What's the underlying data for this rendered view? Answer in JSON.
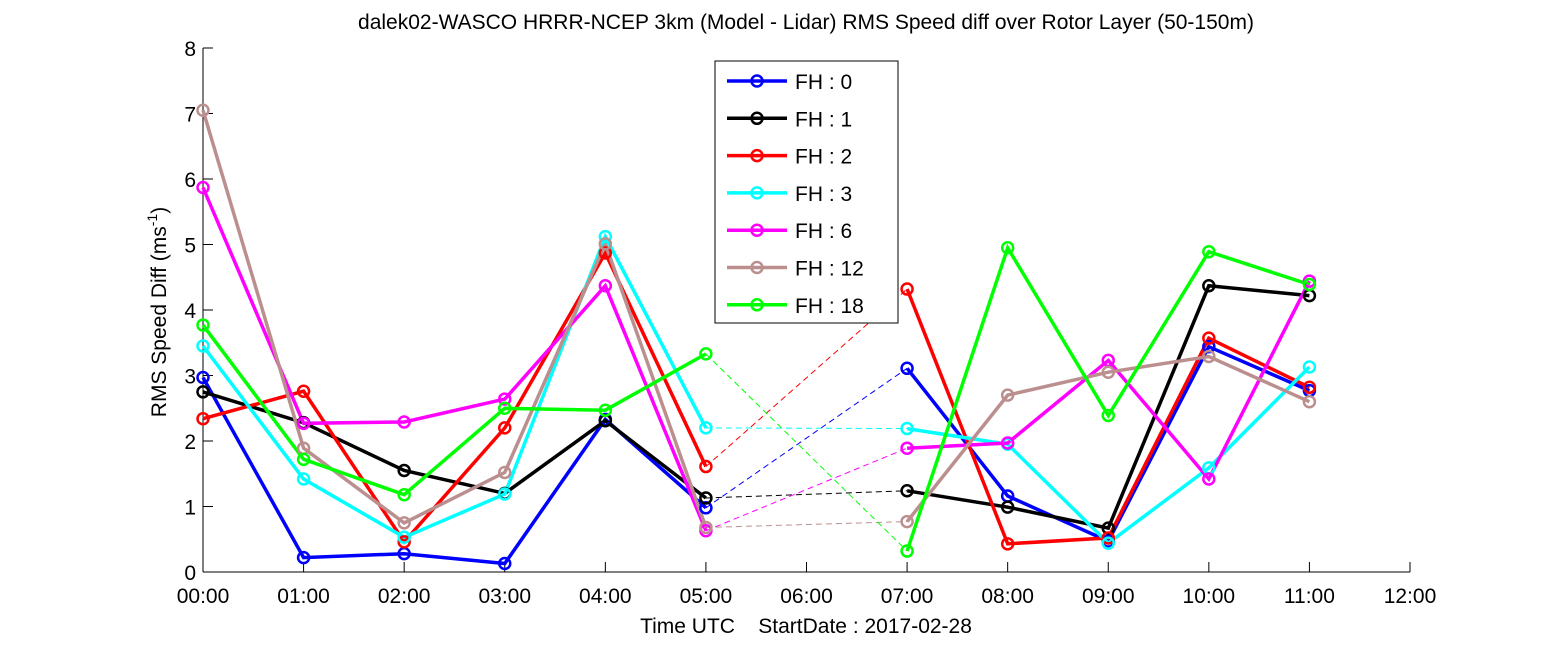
{
  "chart_data": {
    "type": "line",
    "title": "dalek02-WASCO HRRR-NCEP 3km (Model - Lidar) RMS Speed diff over Rotor Layer (50-150m)",
    "xlabel": "Time UTC    StartDate : 2017-02-28",
    "ylabel_main": "RMS Speed Diff (ms",
    "ylabel_sup": "-1",
    "ylabel_tail": ")",
    "x_ticks": [
      {
        "label": "00:00",
        "value": 0
      },
      {
        "label": "01:00",
        "value": 1
      },
      {
        "label": "02:00",
        "value": 2
      },
      {
        "label": "03:00",
        "value": 3
      },
      {
        "label": "04:00",
        "value": 4
      },
      {
        "label": "05:00",
        "value": 5
      },
      {
        "label": "06:00",
        "value": 6
      },
      {
        "label": "07:00",
        "value": 7
      },
      {
        "label": "08:00",
        "value": 8
      },
      {
        "label": "09:00",
        "value": 9
      },
      {
        "label": "10:00",
        "value": 10
      },
      {
        "label": "11:00",
        "value": 11
      },
      {
        "label": "12:00",
        "value": 12
      }
    ],
    "xlim": [
      0,
      12
    ],
    "ylim": [
      0,
      8
    ],
    "y_ticks": [
      0,
      1,
      2,
      3,
      4,
      5,
      6,
      7,
      8
    ],
    "grid": false,
    "legend_position": "top-center",
    "series": [
      {
        "name": "FH : 0",
        "color": "#0000ff",
        "x": [
          0,
          1,
          2,
          3,
          4,
          5,
          7,
          8,
          9,
          10,
          11
        ],
        "y": [
          2.97,
          0.22,
          0.28,
          0.13,
          2.33,
          0.98,
          3.11,
          1.16,
          0.47,
          3.44,
          2.77
        ]
      },
      {
        "name": "FH : 1",
        "color": "#000000",
        "x": [
          0,
          1,
          2,
          3,
          4,
          5,
          7,
          8,
          9,
          10,
          11
        ],
        "y": [
          2.75,
          2.28,
          1.55,
          1.2,
          2.31,
          1.13,
          1.24,
          0.99,
          0.67,
          4.37,
          4.22
        ]
      },
      {
        "name": "FH : 2",
        "color": "#ff0000",
        "x": [
          0,
          1,
          2,
          3,
          4,
          5,
          7,
          8,
          9,
          10,
          11
        ],
        "y": [
          2.34,
          2.76,
          0.46,
          2.2,
          4.87,
          1.61,
          4.32,
          0.43,
          0.52,
          3.57,
          2.82
        ]
      },
      {
        "name": "FH : 3",
        "color": "#00ffff",
        "x": [
          0,
          1,
          2,
          3,
          4,
          5,
          7,
          8,
          9,
          10,
          11
        ],
        "y": [
          3.45,
          1.42,
          0.53,
          1.19,
          5.12,
          2.2,
          2.19,
          1.95,
          0.44,
          1.59,
          3.13
        ]
      },
      {
        "name": "FH : 6",
        "color": "#ff00ff",
        "x": [
          0,
          1,
          2,
          3,
          4,
          5,
          7,
          8,
          9,
          10,
          11
        ],
        "y": [
          5.87,
          2.27,
          2.29,
          2.64,
          4.37,
          0.63,
          1.89,
          1.97,
          3.23,
          1.42,
          4.44
        ]
      },
      {
        "name": "FH : 12",
        "color": "#bc8f8f",
        "x": [
          0,
          1,
          2,
          3,
          4,
          5,
          7,
          8,
          9,
          10,
          11
        ],
        "y": [
          7.05,
          1.89,
          0.75,
          1.52,
          5.01,
          0.68,
          0.77,
          2.7,
          3.05,
          3.29,
          2.6
        ]
      },
      {
        "name": "FH : 18",
        "color": "#00ff00",
        "x": [
          0,
          1,
          2,
          3,
          4,
          5,
          7,
          8,
          9,
          10,
          11
        ],
        "y": [
          3.77,
          1.72,
          1.18,
          2.5,
          2.47,
          3.33,
          0.32,
          4.95,
          2.39,
          4.89,
          4.39
        ]
      }
    ],
    "gap": {
      "from_x": 5,
      "to_x": 7,
      "style": "dashed"
    }
  }
}
